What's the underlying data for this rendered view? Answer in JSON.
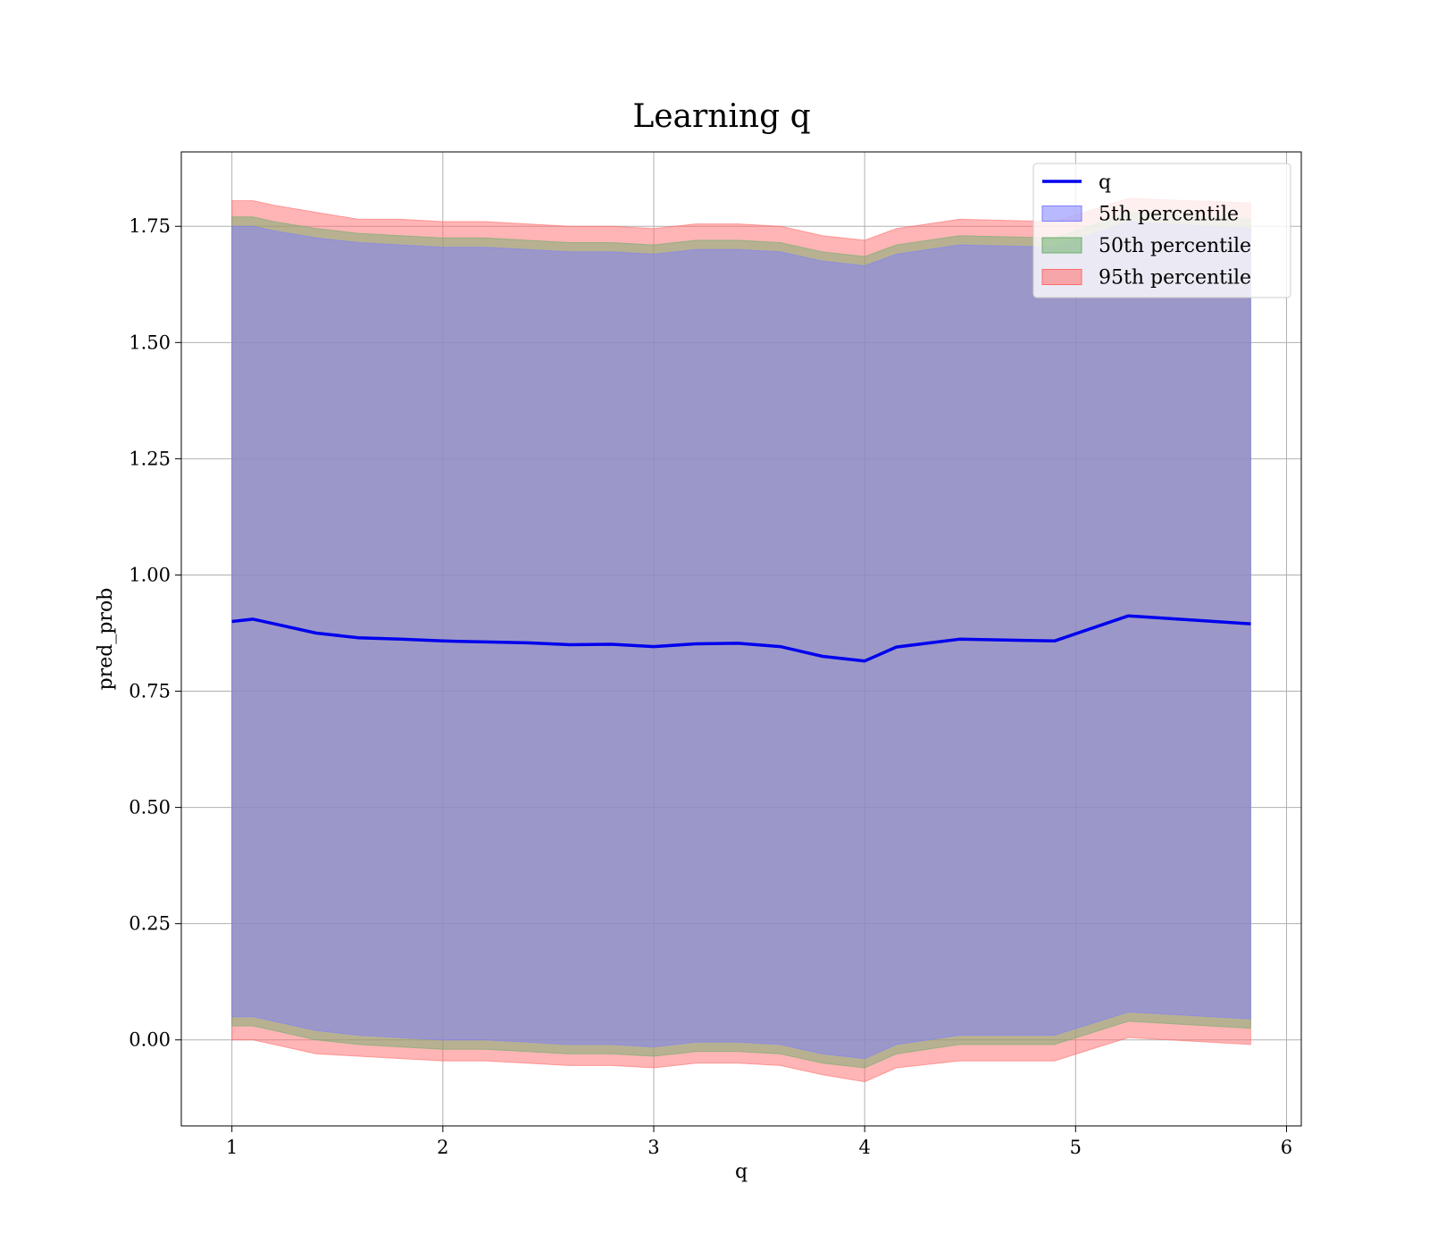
{
  "chart_data": {
    "type": "area",
    "title": "Learning q",
    "xlabel": "q",
    "ylabel": "pred_prob",
    "xlim": [
      0.76,
      6.07
    ],
    "ylim": [
      -0.185,
      1.91
    ],
    "grid": true,
    "legend_position": "top-right",
    "xticks": [
      1,
      2,
      3,
      4,
      5,
      6
    ],
    "yticks": [
      0.0,
      0.25,
      0.5,
      0.75,
      1.0,
      1.25,
      1.5,
      1.75
    ],
    "x": [
      1.0,
      1.1,
      1.2,
      1.4,
      1.6,
      1.8,
      2.0,
      2.2,
      2.4,
      2.6,
      2.8,
      3.0,
      3.2,
      3.4,
      3.6,
      3.8,
      4.0,
      4.15,
      4.45,
      4.9,
      5.25,
      5.83
    ],
    "series": [
      {
        "name": "q",
        "kind": "line",
        "color": "#0000ee",
        "values": [
          0.9,
          0.905,
          0.895,
          0.875,
          0.865,
          0.862,
          0.858,
          0.856,
          0.854,
          0.85,
          0.851,
          0.846,
          0.852,
          0.853,
          0.846,
          0.825,
          0.815,
          0.845,
          0.862,
          0.858,
          0.912,
          0.895
        ]
      },
      {
        "name": "5th percentile",
        "kind": "band",
        "color": "#7f7fff",
        "lower": [
          0.05,
          0.05,
          0.04,
          0.02,
          0.01,
          0.005,
          0.0,
          0.0,
          -0.005,
          -0.01,
          -0.01,
          -0.015,
          -0.005,
          -0.005,
          -0.01,
          -0.03,
          -0.04,
          -0.01,
          0.01,
          0.01,
          0.06,
          0.045
        ],
        "upper": [
          1.75,
          1.75,
          1.74,
          1.725,
          1.715,
          1.71,
          1.705,
          1.705,
          1.7,
          1.695,
          1.695,
          1.69,
          1.7,
          1.7,
          1.695,
          1.675,
          1.665,
          1.69,
          1.71,
          1.705,
          1.76,
          1.745
        ]
      },
      {
        "name": "50th percentile",
        "kind": "band",
        "color": "#6fae6f",
        "lower": [
          0.03,
          0.03,
          0.02,
          0.0,
          -0.01,
          -0.015,
          -0.02,
          -0.02,
          -0.025,
          -0.03,
          -0.03,
          -0.035,
          -0.025,
          -0.025,
          -0.03,
          -0.05,
          -0.06,
          -0.03,
          -0.01,
          -0.01,
          0.04,
          0.025
        ],
        "upper": [
          1.77,
          1.77,
          1.76,
          1.745,
          1.735,
          1.73,
          1.725,
          1.725,
          1.72,
          1.715,
          1.715,
          1.71,
          1.72,
          1.72,
          1.715,
          1.695,
          1.685,
          1.71,
          1.73,
          1.725,
          1.78,
          1.765
        ]
      },
      {
        "name": "95th percentile",
        "kind": "band",
        "color": "#ff6b6b",
        "lower": [
          0.0,
          0.0,
          -0.01,
          -0.03,
          -0.035,
          -0.04,
          -0.045,
          -0.045,
          -0.05,
          -0.055,
          -0.055,
          -0.06,
          -0.05,
          -0.05,
          -0.055,
          -0.075,
          -0.09,
          -0.06,
          -0.045,
          -0.045,
          0.005,
          -0.01
        ],
        "upper": [
          1.805,
          1.805,
          1.795,
          1.78,
          1.765,
          1.765,
          1.76,
          1.76,
          1.755,
          1.75,
          1.75,
          1.745,
          1.755,
          1.755,
          1.75,
          1.73,
          1.72,
          1.745,
          1.765,
          1.76,
          1.81,
          1.8
        ]
      }
    ]
  }
}
